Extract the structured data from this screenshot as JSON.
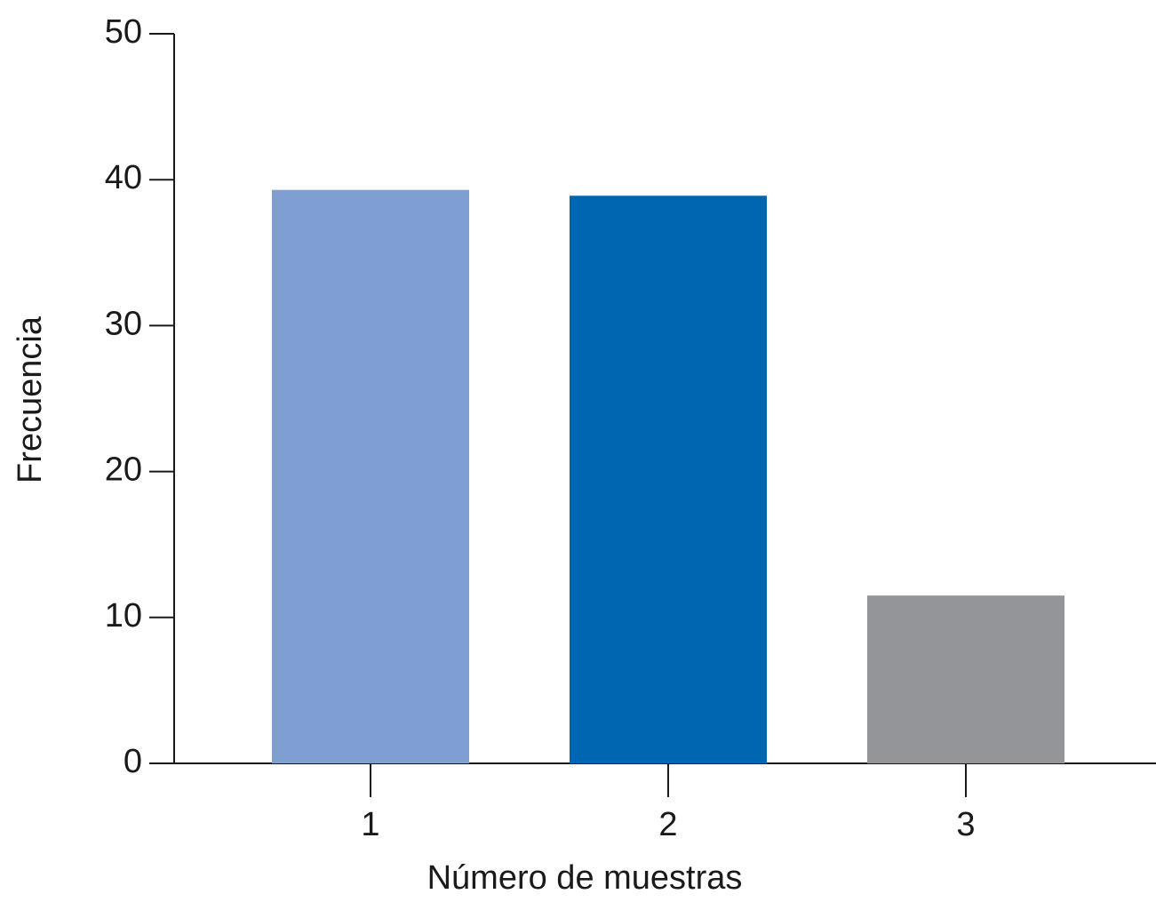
{
  "chart_data": {
    "type": "bar",
    "x_label": "Número de muestras",
    "y_label": "Frecuencia",
    "categories": [
      "1",
      "2",
      "3"
    ],
    "values": [
      39.3,
      38.9,
      11.5
    ],
    "colors": [
      "#7f9fd2",
      "#0066b2",
      "#939598"
    ],
    "ylim": [
      0,
      50
    ],
    "yticks": [
      0,
      10,
      20,
      30,
      40,
      50
    ]
  }
}
